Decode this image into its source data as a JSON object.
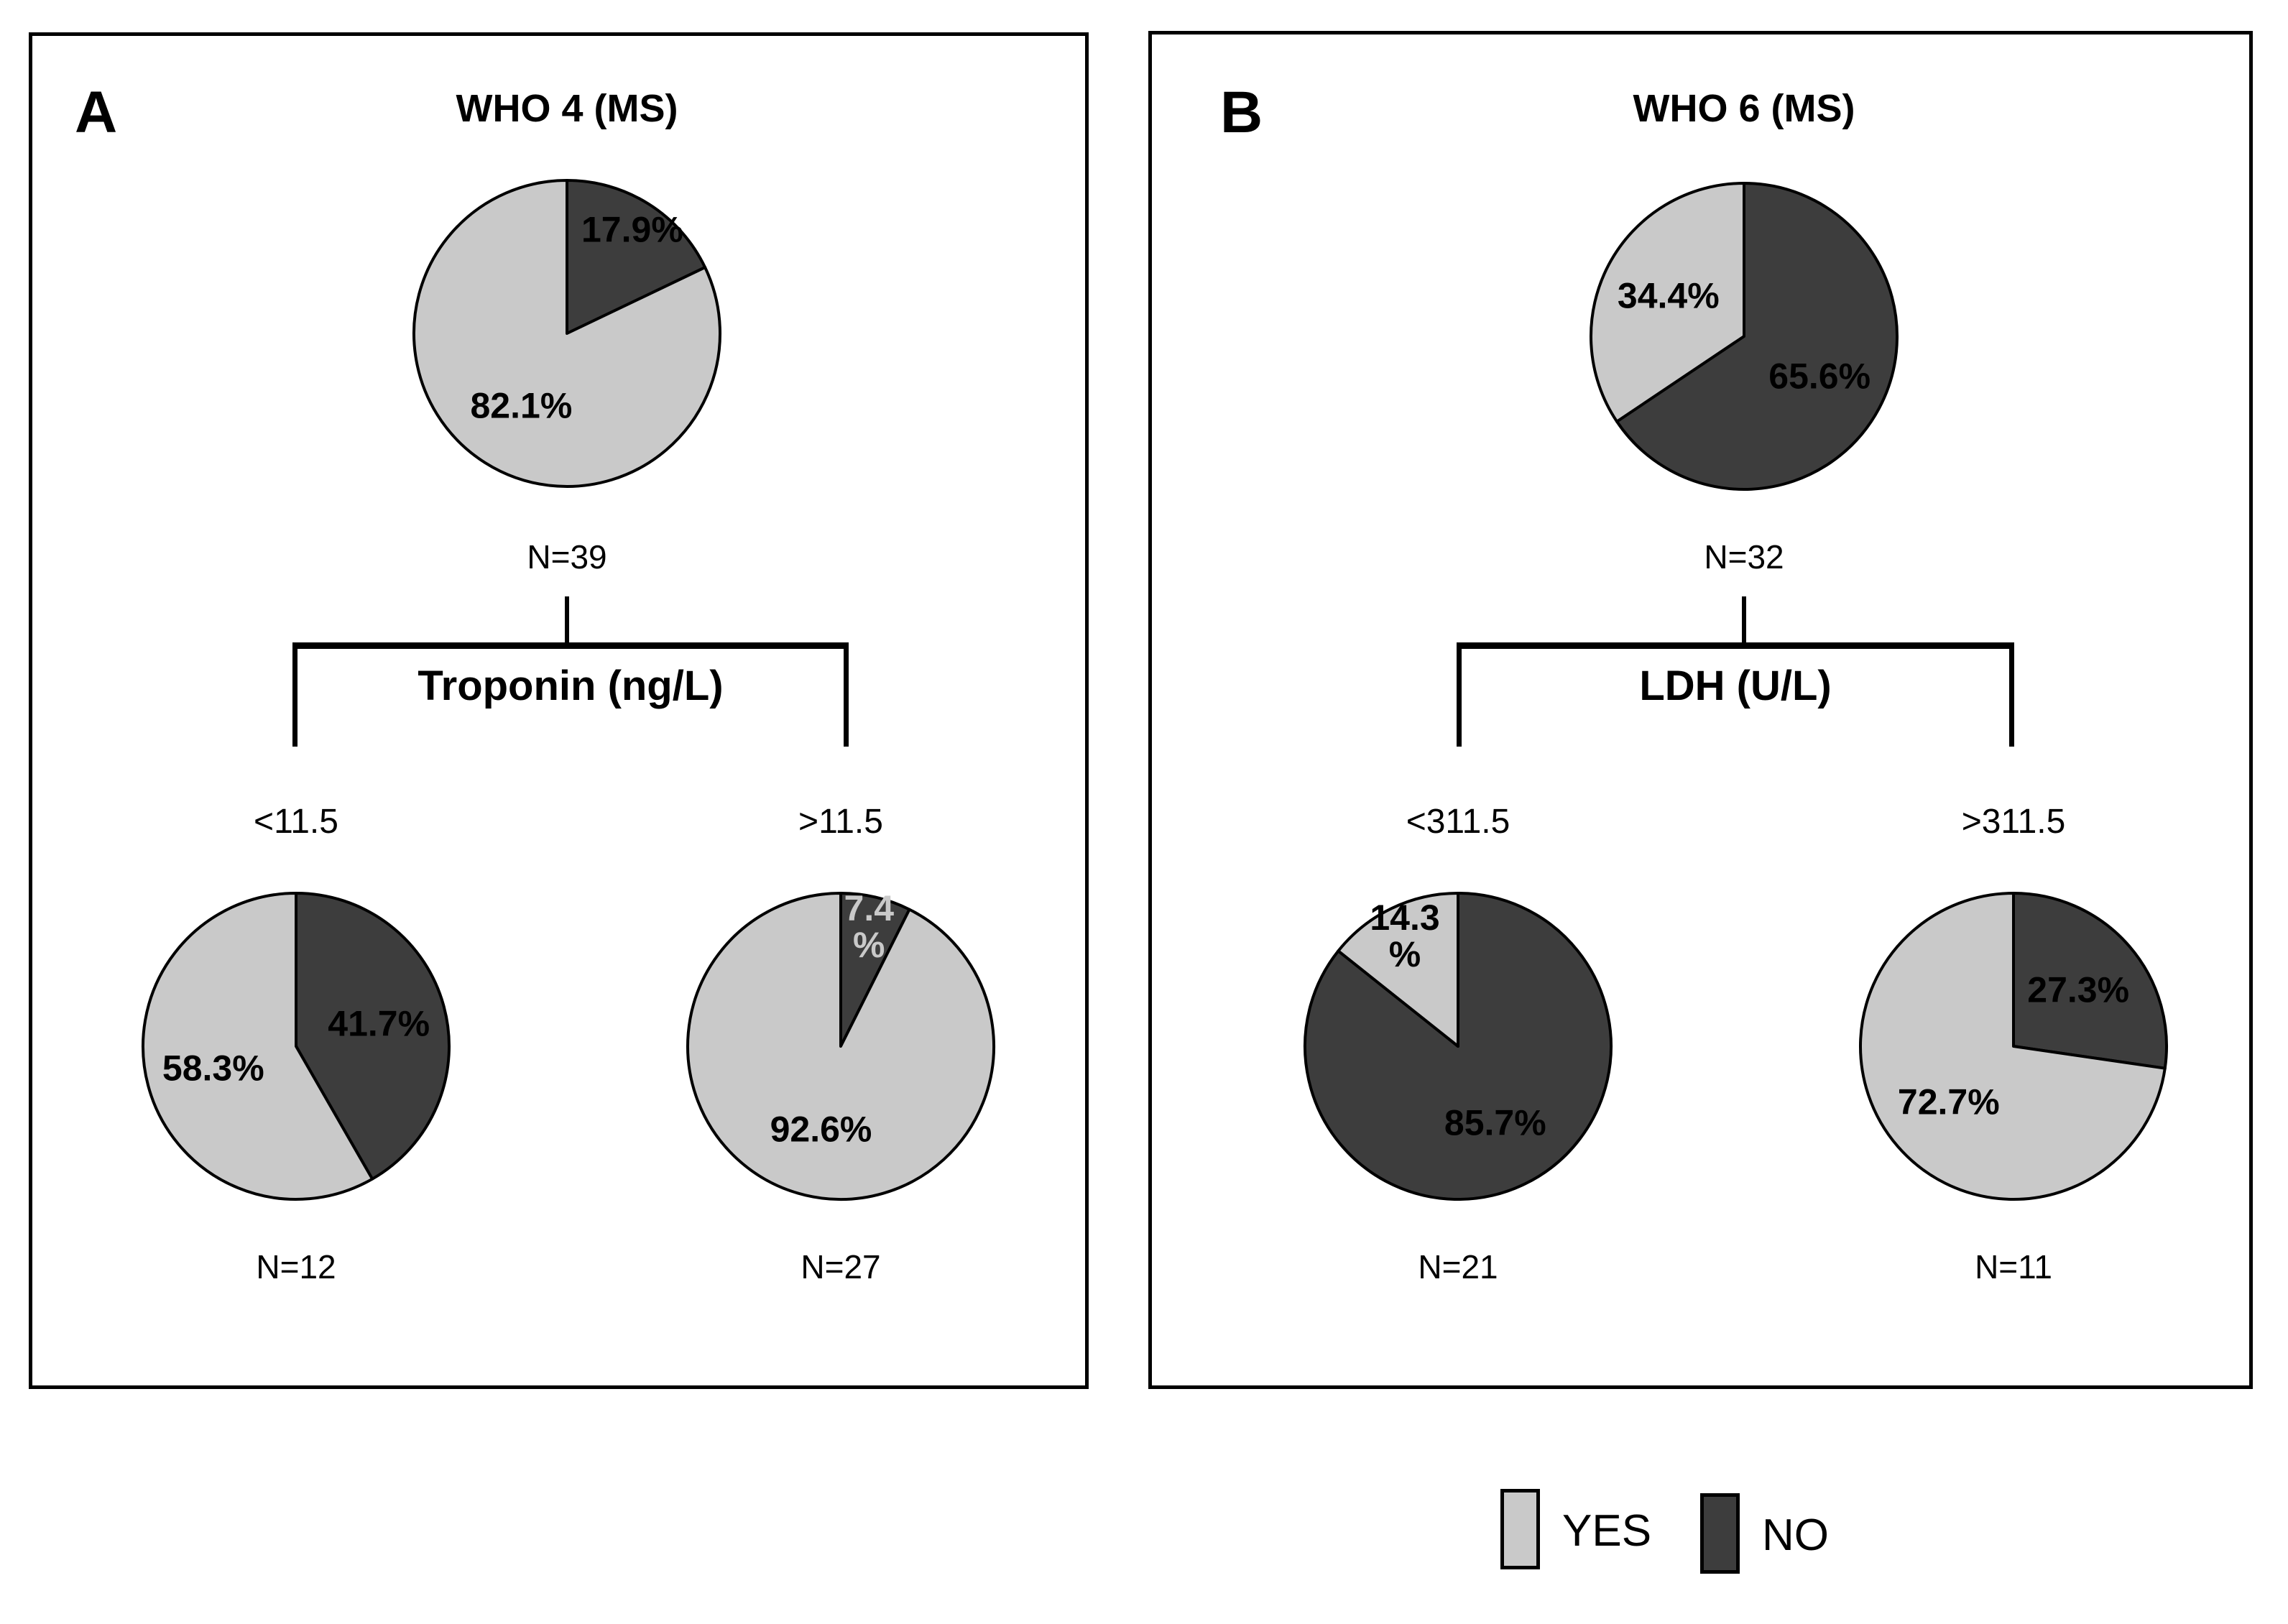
{
  "figure": {
    "panels": [
      {
        "letter": "A",
        "title": "WHO 4 (MS)",
        "split_variable": "Troponin (ng/L)",
        "branch_conditions": [
          "<11.5",
          ">11.5"
        ]
      },
      {
        "letter": "B",
        "title": "WHO 6 (MS)",
        "split_variable": "LDH (U/L)",
        "branch_conditions": [
          "<311.5",
          ">311.5"
        ]
      }
    ]
  },
  "legend": {
    "position": "bottom-right",
    "items": [
      {
        "label": "YES",
        "color": "#c9c9c9"
      },
      {
        "label": "NO",
        "color": "#3d3d3d"
      }
    ]
  },
  "chart_data": [
    {
      "type": "pie",
      "panel": "A",
      "node": "root",
      "title": "WHO 4 (MS)",
      "n": 39,
      "n_label": "N=39",
      "slices": [
        {
          "name": "NO",
          "value": 17.9,
          "label": "17.9%",
          "color": "#3d3d3d"
        },
        {
          "name": "YES",
          "value": 82.1,
          "label": "82.1%",
          "color": "#c9c9c9"
        }
      ]
    },
    {
      "type": "pie",
      "panel": "A",
      "node": "branch-left",
      "variable": "Troponin (ng/L)",
      "condition": "<11.5",
      "n": 12,
      "n_label": "N=12",
      "slices": [
        {
          "name": "NO",
          "value": 41.7,
          "label": "41.7%",
          "color": "#3d3d3d"
        },
        {
          "name": "YES",
          "value": 58.3,
          "label": "58.3%",
          "color": "#c9c9c9"
        }
      ]
    },
    {
      "type": "pie",
      "panel": "A",
      "node": "branch-right",
      "variable": "Troponin (ng/L)",
      "condition": ">11.5",
      "n": 27,
      "n_label": "N=27",
      "slices": [
        {
          "name": "NO",
          "value": 7.4,
          "label": "7.4\n%",
          "color": "#3d3d3d",
          "label_color": "#c9c9c9"
        },
        {
          "name": "YES",
          "value": 92.6,
          "label": "92.6%",
          "color": "#c9c9c9"
        }
      ]
    },
    {
      "type": "pie",
      "panel": "B",
      "node": "root",
      "title": "WHO 6 (MS)",
      "n": 32,
      "n_label": "N=32",
      "slices": [
        {
          "name": "NO",
          "value": 65.6,
          "label": "65.6%",
          "color": "#3d3d3d"
        },
        {
          "name": "YES",
          "value": 34.4,
          "label": "34.4%",
          "color": "#c9c9c9"
        }
      ]
    },
    {
      "type": "pie",
      "panel": "B",
      "node": "branch-left",
      "variable": "LDH (U/L)",
      "condition": "<311.5",
      "n": 21,
      "n_label": "N=21",
      "slices": [
        {
          "name": "NO",
          "value": 85.7,
          "label": "85.7%",
          "color": "#3d3d3d"
        },
        {
          "name": "YES",
          "value": 14.3,
          "label": "14.3\n%",
          "color": "#c9c9c9"
        }
      ]
    },
    {
      "type": "pie",
      "panel": "B",
      "node": "branch-right",
      "variable": "LDH (U/L)",
      "condition": ">311.5",
      "n": 11,
      "n_label": "N=11",
      "slices": [
        {
          "name": "NO",
          "value": 27.3,
          "label": "27.3%",
          "color": "#3d3d3d"
        },
        {
          "name": "YES",
          "value": 72.7,
          "label": "72.7%",
          "color": "#c9c9c9"
        }
      ]
    }
  ]
}
